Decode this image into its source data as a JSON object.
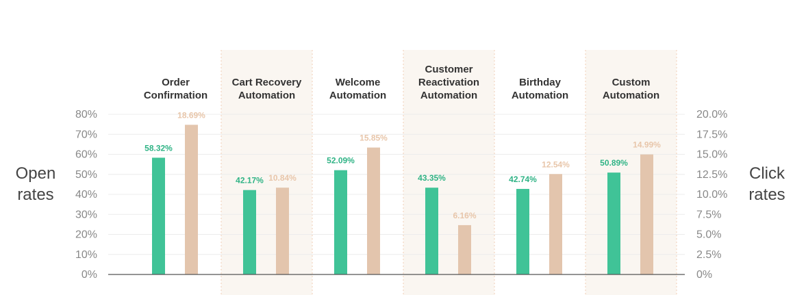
{
  "chart_data": {
    "type": "bar",
    "title": "",
    "categories": [
      [
        "Order",
        "Confirmation"
      ],
      [
        "Cart Recovery",
        "Automation"
      ],
      [
        "Welcome",
        "Automation"
      ],
      [
        "Customer",
        "Reactivation",
        "Automation"
      ],
      [
        "Birthday",
        "Automation"
      ],
      [
        "Custom",
        "Automation"
      ]
    ],
    "series": [
      {
        "name": "Open rates",
        "axis": "left",
        "color": "#40c397",
        "label_color": "#2fb385",
        "values": [
          58.32,
          42.17,
          52.09,
          43.35,
          42.74,
          50.89
        ],
        "labels": [
          "58.32%",
          "42.17%",
          "52.09%",
          "43.35%",
          "42.74%",
          "50.89%"
        ]
      },
      {
        "name": "Click rates",
        "axis": "right",
        "color": "#e3c5ad",
        "label_color": "#e8c6aa",
        "values": [
          18.69,
          10.84,
          15.85,
          6.16,
          12.54,
          14.99
        ],
        "labels": [
          "18.69%",
          "10.84%",
          "15.85%",
          "6.16%",
          "12.54%",
          "14.99%"
        ]
      }
    ],
    "ylabel_left": [
      "Open",
      "rates"
    ],
    "ylabel_right": [
      "Click",
      "rates"
    ],
    "ylim_left": [
      0,
      80
    ],
    "ylim_right": [
      0,
      20
    ],
    "yticks_left": [
      "0%",
      "10%",
      "20%",
      "30%",
      "40%",
      "50%",
      "60%",
      "70%",
      "80%"
    ],
    "yticks_right": [
      "0%",
      "2.5%",
      "5.0%",
      "7.5%",
      "10.0%",
      "12.5%",
      "15.0%",
      "17.5%",
      "20.0%"
    ],
    "shaded_categories": [
      1,
      3,
      5
    ],
    "shade_color": "#faf6f1",
    "grid": true
  }
}
